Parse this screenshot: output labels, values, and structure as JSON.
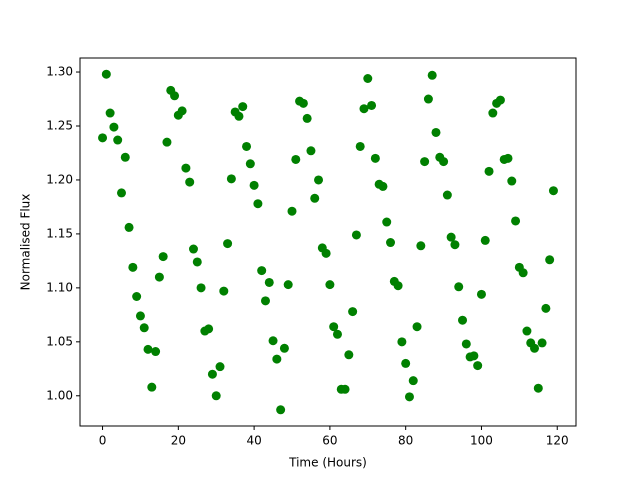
{
  "chart_data": {
    "type": "scatter",
    "xlabel": "Time (Hours)",
    "ylabel": "Normalised Flux",
    "color": "#008000",
    "x": [
      0,
      1,
      2,
      3,
      4,
      5,
      6,
      7,
      8,
      9,
      10,
      11,
      12,
      13,
      14,
      15,
      16,
      17,
      18,
      19,
      20,
      21,
      22,
      23,
      24,
      25,
      26,
      27,
      28,
      29,
      30,
      31,
      32,
      33,
      34,
      35,
      36,
      37,
      38,
      39,
      40,
      41,
      42,
      43,
      44,
      45,
      46,
      47,
      48,
      49,
      50,
      51,
      52,
      53,
      54,
      55,
      56,
      57,
      58,
      59,
      60,
      61,
      62,
      63,
      64,
      65,
      66,
      67,
      68,
      69,
      70,
      71,
      72,
      73,
      74,
      75,
      76,
      77,
      78,
      79,
      80,
      81,
      82,
      83,
      84,
      85,
      86,
      87,
      88,
      89,
      90,
      91,
      92,
      93,
      94,
      95,
      96,
      97,
      98,
      99,
      100,
      101,
      102,
      103,
      104,
      105,
      106,
      107,
      108,
      109,
      110,
      111,
      112,
      113,
      114,
      115,
      116,
      117,
      118,
      119
    ],
    "values": [
      1.239,
      1.298,
      1.262,
      1.249,
      1.237,
      1.188,
      1.221,
      1.156,
      1.119,
      1.092,
      1.074,
      1.063,
      1.043,
      1.008,
      1.041,
      1.11,
      1.129,
      1.235,
      1.283,
      1.278,
      1.26,
      1.264,
      1.211,
      1.198,
      1.136,
      1.124,
      1.1,
      1.06,
      1.062,
      1.02,
      1.0,
      1.027,
      1.097,
      1.141,
      1.201,
      1.263,
      1.259,
      1.268,
      1.231,
      1.215,
      1.195,
      1.178,
      1.116,
      1.088,
      1.105,
      1.051,
      1.034,
      0.987,
      1.044,
      1.103,
      1.171,
      1.219,
      1.273,
      1.271,
      1.257,
      1.227,
      1.183,
      1.2,
      1.137,
      1.132,
      1.103,
      1.064,
      1.057,
      1.006,
      1.006,
      1.038,
      1.078,
      1.149,
      1.231,
      1.266,
      1.294,
      1.269,
      1.22,
      1.196,
      1.194,
      1.161,
      1.142,
      1.106,
      1.102,
      1.05,
      1.03,
      0.999,
      1.014,
      1.064,
      1.139,
      1.217,
      1.275,
      1.297,
      1.244,
      1.221,
      1.217,
      1.186,
      1.147,
      1.14,
      1.101,
      1.07,
      1.048,
      1.036,
      1.037,
      1.028,
      1.094,
      1.144,
      1.208,
      1.262,
      1.271,
      1.274,
      1.219,
      1.22,
      1.199,
      1.162,
      1.119,
      1.114,
      1.06,
      1.049,
      1.044,
      1.007,
      1.049,
      1.081,
      1.126,
      1.19
    ],
    "xlim": [
      -5.95,
      124.95
    ],
    "ylim": [
      0.972,
      1.313
    ],
    "xticks": [
      0,
      20,
      40,
      60,
      80,
      100,
      120
    ],
    "yticks": [
      {
        "value": 1,
        "label": "1.00"
      },
      1.05,
      {
        "value": 1.1,
        "label": "1.10"
      },
      1.15,
      {
        "value": 1.2,
        "label": "1.20"
      },
      1.25,
      {
        "value": 1.3,
        "label": "1.30"
      }
    ]
  }
}
